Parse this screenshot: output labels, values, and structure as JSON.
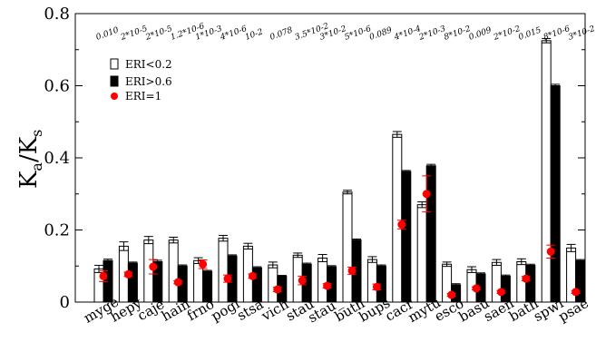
{
  "chart_data": {
    "type": "bar",
    "ylabel": "K",
    "ylabel_sub_a": "a",
    "ylabel_mid": "/K",
    "ylabel_sub_s": "s",
    "ylim": [
      0,
      0.8
    ],
    "yticks": [
      0,
      0.2,
      0.4,
      0.6,
      0.8
    ],
    "ytick_labels": [
      "0",
      "0.2",
      "0.4",
      "0.6",
      "0.8"
    ],
    "categories": [
      "myge",
      "hepy",
      "caje",
      "hain",
      "frno",
      "pogi",
      "stsa",
      "vich",
      "stau",
      "stau_",
      "buth",
      "bups",
      "cacr",
      "mytu",
      "esco",
      "basu",
      "saen",
      "bath",
      "spwi",
      "psae"
    ],
    "pvalues": [
      "0.010",
      "2*10-5",
      "2*10-5",
      "1.2*10-6",
      "1*10-3",
      "4*10-6",
      "10-2",
      "0.078",
      "3.5*10-2",
      "3*10-2",
      "5*10-6",
      "0.089",
      "4*10-4",
      "2*10-3",
      "8*10-2",
      "0.009",
      "2*10-2",
      "0.015",
      "8*10-6",
      "3*10-2"
    ],
    "series": [
      {
        "name": "ERI<0.2",
        "values": [
          0.092,
          0.155,
          0.172,
          0.172,
          0.115,
          0.177,
          0.155,
          0.103,
          0.13,
          0.122,
          0.305,
          0.118,
          0.465,
          0.27,
          0.105,
          0.09,
          0.11,
          0.112,
          0.725,
          0.15
        ],
        "errors": [
          0.01,
          0.012,
          0.01,
          0.008,
          0.008,
          0.008,
          0.008,
          0.008,
          0.006,
          0.01,
          0.005,
          0.008,
          0.008,
          0.008,
          0.006,
          0.008,
          0.008,
          0.008,
          0.006,
          0.01
        ]
      },
      {
        "name": "ERI>0.6",
        "values": [
          0.115,
          0.108,
          0.112,
          0.1,
          0.085,
          0.128,
          0.095,
          0.072,
          0.105,
          0.098,
          0.172,
          0.1,
          0.362,
          0.378,
          0.048,
          0.078,
          0.072,
          0.102,
          0.6,
          0.115
        ],
        "errors": [
          0.004,
          0.003,
          0.004,
          0.003,
          0.003,
          0.003,
          0.003,
          0.002,
          0.003,
          0.003,
          0.003,
          0.003,
          0.003,
          0.004,
          0.003,
          0.003,
          0.003,
          0.003,
          0.004,
          0.003
        ]
      },
      {
        "name": "ERI=1",
        "values": [
          0.072,
          0.077,
          0.098,
          0.055,
          0.105,
          0.065,
          0.072,
          0.035,
          0.06,
          0.045,
          0.087,
          0.042,
          0.215,
          0.3,
          0.02,
          0.038,
          0.028,
          0.065,
          0.14,
          0.028
        ],
        "errors": [
          0.015,
          0.006,
          0.02,
          0.004,
          0.012,
          0.01,
          0.006,
          0.006,
          0.012,
          0.006,
          0.01,
          0.008,
          0.012,
          0.05,
          0.004,
          0.004,
          0.004,
          0.006,
          0.018,
          0.004
        ]
      }
    ],
    "legend_position": "top-left",
    "grid": false,
    "colors": {
      "ERI<0.2": "#ffffff",
      "ERI>0.6": "#000000",
      "ERI=1": "#ff0000"
    }
  }
}
